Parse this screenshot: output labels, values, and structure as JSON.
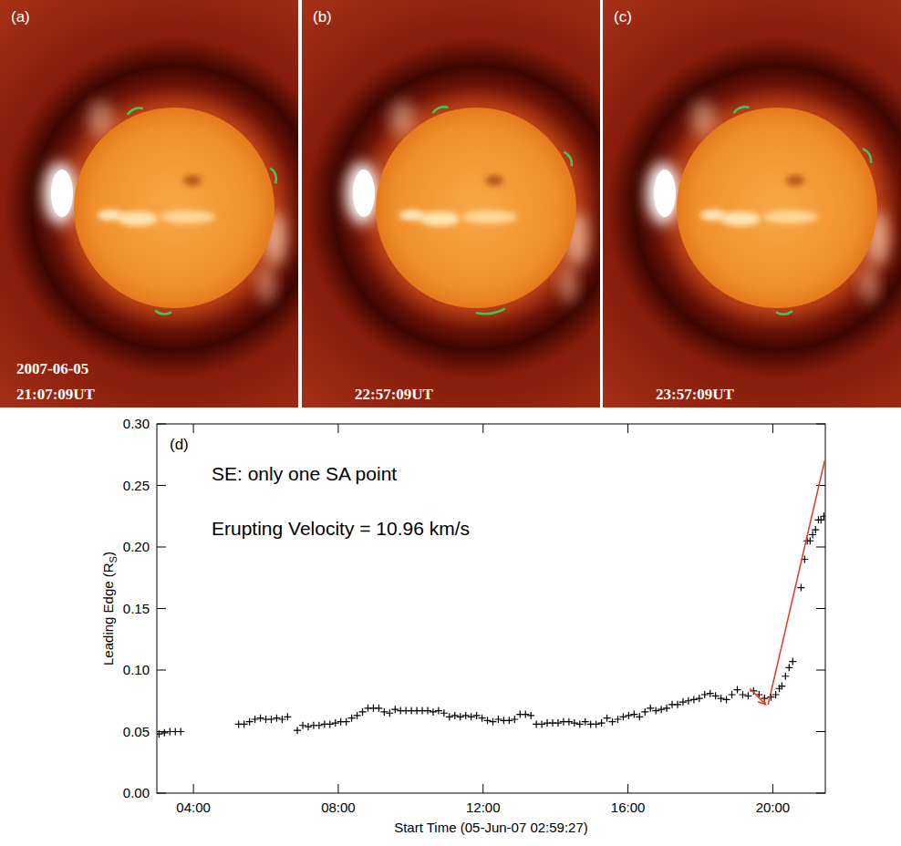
{
  "images": [
    {
      "letter": "(a)",
      "date": "2007-06-05",
      "time": "21:07:09UT"
    },
    {
      "letter": "(b)",
      "time": "22:57:09UT"
    },
    {
      "letter": "(c)",
      "time": "23:57:09UT"
    }
  ],
  "chart_data": {
    "type": "scatter",
    "panel_label": "(d)",
    "annotations": [
      "SE: only one SA point",
      "Erupting Velocity = 10.96 km/s"
    ],
    "xlabel": "Start Time (05-Jun-07 02:59:27)",
    "ylabel": {
      "text": "Leading Edge (R",
      "subscript": "S",
      "suffix": ")"
    },
    "marker": "plus",
    "color": "#000000",
    "xlim": [
      2.99,
      21.45
    ],
    "ylim": [
      0,
      0.3
    ],
    "xticks": [
      {
        "value": 4,
        "label": "04:00"
      },
      {
        "value": 8,
        "label": "08:00"
      },
      {
        "value": 12,
        "label": "12:00"
      },
      {
        "value": 16,
        "label": "16:00"
      },
      {
        "value": 20,
        "label": "20:00"
      }
    ],
    "yticks": [
      {
        "value": 0,
        "label": "0.00"
      },
      {
        "value": 0.05,
        "label": "0.05"
      },
      {
        "value": 0.1,
        "label": "0.10"
      },
      {
        "value": 0.15,
        "label": "0.15"
      },
      {
        "value": 0.2,
        "label": "0.20"
      },
      {
        "value": 0.25,
        "label": "0.25"
      },
      {
        "value": 0.3,
        "label": "0.30"
      }
    ],
    "x": [
      3.05,
      3.2,
      3.35,
      3.5,
      3.65,
      5.25,
      5.4,
      5.55,
      5.7,
      5.85,
      6.0,
      6.15,
      6.3,
      6.45,
      6.6,
      6.87,
      7.02,
      7.17,
      7.32,
      7.47,
      7.62,
      7.77,
      7.92,
      8.07,
      8.22,
      8.37,
      8.52,
      8.67,
      8.82,
      8.97,
      9.12,
      9.27,
      9.42,
      9.57,
      9.72,
      9.87,
      10.02,
      10.17,
      10.32,
      10.47,
      10.62,
      10.77,
      10.92,
      11.07,
      11.22,
      11.37,
      11.52,
      11.67,
      11.82,
      11.97,
      12.12,
      12.27,
      12.42,
      12.57,
      12.72,
      12.87,
      13.02,
      13.17,
      13.32,
      13.47,
      13.62,
      13.77,
      13.92,
      14.07,
      14.22,
      14.37,
      14.52,
      14.67,
      14.82,
      14.97,
      15.12,
      15.27,
      15.42,
      15.57,
      15.72,
      15.87,
      16.02,
      16.17,
      16.32,
      16.47,
      16.62,
      16.77,
      16.92,
      17.07,
      17.22,
      17.37,
      17.52,
      17.67,
      17.82,
      17.97,
      18.12,
      18.27,
      18.42,
      18.57,
      18.72,
      18.87,
      19.02,
      19.17,
      19.32,
      19.47,
      19.62,
      19.77,
      19.95,
      20.08,
      20.18,
      20.25,
      20.35,
      20.45,
      20.55,
      20.78,
      20.88,
      20.95,
      21.03,
      21.1,
      21.18,
      21.26,
      21.33,
      21.41
    ],
    "values": [
      0.048,
      0.049,
      0.05,
      0.05,
      0.05,
      0.056,
      0.056,
      0.058,
      0.06,
      0.061,
      0.06,
      0.06,
      0.061,
      0.06,
      0.062,
      0.051,
      0.055,
      0.054,
      0.055,
      0.055,
      0.056,
      0.056,
      0.057,
      0.058,
      0.058,
      0.061,
      0.063,
      0.066,
      0.069,
      0.069,
      0.069,
      0.066,
      0.065,
      0.068,
      0.067,
      0.067,
      0.067,
      0.067,
      0.067,
      0.067,
      0.066,
      0.067,
      0.065,
      0.062,
      0.063,
      0.062,
      0.063,
      0.062,
      0.063,
      0.061,
      0.059,
      0.058,
      0.06,
      0.059,
      0.059,
      0.06,
      0.064,
      0.064,
      0.063,
      0.056,
      0.056,
      0.057,
      0.057,
      0.057,
      0.058,
      0.058,
      0.057,
      0.056,
      0.058,
      0.056,
      0.056,
      0.057,
      0.061,
      0.058,
      0.06,
      0.062,
      0.063,
      0.064,
      0.062,
      0.066,
      0.069,
      0.067,
      0.068,
      0.069,
      0.072,
      0.072,
      0.074,
      0.075,
      0.076,
      0.077,
      0.08,
      0.081,
      0.079,
      0.077,
      0.076,
      0.08,
      0.084,
      0.08,
      0.079,
      0.083,
      0.08,
      0.077,
      0.078,
      0.08,
      0.085,
      0.087,
      0.095,
      0.102,
      0.107,
      0.167,
      0.19,
      0.205,
      0.205,
      0.21,
      0.214,
      0.222,
      0.222,
      0.225
    ],
    "fit": {
      "x": [
        19.87,
        21.43
      ],
      "values": [
        0.072,
        0.27
      ],
      "color": "#e8381e"
    },
    "arrow": {
      "x": [
        19.37,
        19.8
      ],
      "values": [
        0.085,
        0.072
      ],
      "color": "#e8381e"
    }
  }
}
